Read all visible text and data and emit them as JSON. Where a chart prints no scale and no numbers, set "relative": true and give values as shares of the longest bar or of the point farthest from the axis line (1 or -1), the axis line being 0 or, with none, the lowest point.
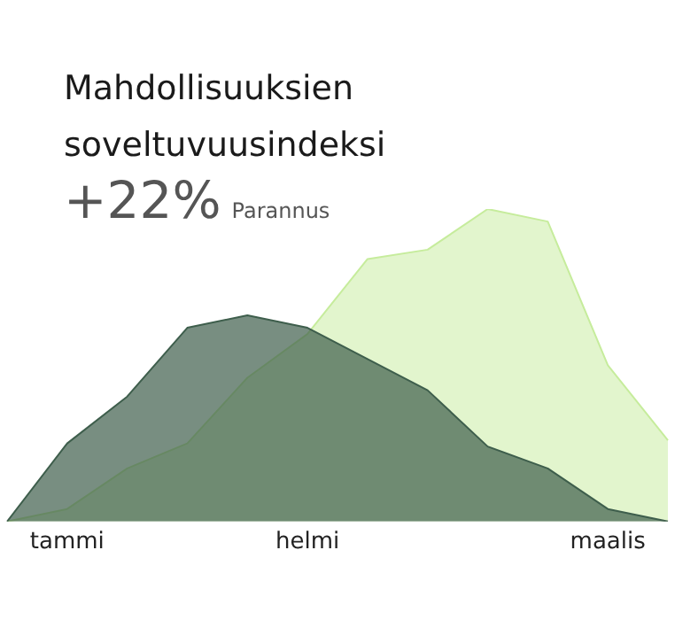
{
  "chart_data": {
    "type": "area",
    "title": "Mahdollisuuksien soveltuvuusindeksi",
    "subtitle": "+22%",
    "annotations": [
      "Parannus"
    ],
    "categories": [
      null,
      "tammi",
      null,
      null,
      null,
      "helmi",
      null,
      null,
      null,
      null,
      "maalis",
      null
    ],
    "relative": true,
    "legend": false,
    "grid": false,
    "marker": "none",
    "series": [
      {
        "color": "#3e5e4c",
        "values": [
          0,
          0.25,
          0.4,
          0.62,
          0.66,
          0.62,
          0.52,
          0.42,
          0.24,
          0.17,
          0.04,
          0
        ]
      },
      {
        "color": "#c6ec9c",
        "values": [
          0,
          0.04,
          0.17,
          0.25,
          0.46,
          0.6,
          0.84,
          0.87,
          1.0,
          0.96,
          0.5,
          0.26
        ]
      }
    ]
  }
}
